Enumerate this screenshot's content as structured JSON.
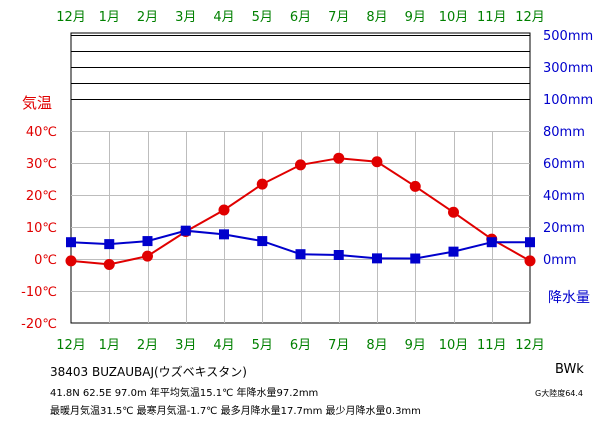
{
  "chart_data": {
    "type": "line",
    "months": [
      "12月",
      "1月",
      "2月",
      "3月",
      "4月",
      "5月",
      "6月",
      "7月",
      "8月",
      "9月",
      "10月",
      "11月",
      "12月"
    ],
    "series": [
      {
        "values": [
          -0.6,
          -1.7,
          0.9,
          8.6,
          15.3,
          23.4,
          29.4,
          31.5,
          30.4,
          22.7,
          14.6,
          6.2,
          -0.6
        ],
        "color": "#e00000",
        "axis": "left",
        "marker": "circle"
      },
      {
        "values": [
          10.5,
          9.3,
          11.2,
          17.7,
          15.4,
          11.2,
          3.0,
          2.5,
          0.4,
          0.3,
          4.6,
          10.5,
          10.5
        ],
        "color": "#0000cc",
        "axis": "right",
        "marker": "square"
      }
    ],
    "left_axis": {
      "label": "気温",
      "ticks": [
        40,
        30,
        20,
        10,
        0,
        -10,
        -20
      ],
      "tick_labels": [
        "40℃",
        "30℃",
        "20℃",
        "10℃",
        "0℃",
        "-10℃",
        "-20℃"
      ],
      "range": [
        -20,
        40
      ],
      "color": "#e00000"
    },
    "right_axis": {
      "label": "降水量",
      "ticks": [
        500,
        300,
        100,
        80,
        60,
        40,
        20,
        0
      ],
      "tick_labels": [
        "500mm",
        "300mm",
        "100mm",
        "80mm",
        "60mm",
        "40mm",
        "20mm",
        "0mm"
      ],
      "linear_range": [
        0,
        100
      ],
      "color": "#0000cc"
    },
    "month_label_color": "#008000",
    "grid": true
  },
  "info": {
    "station": "38403  BUZAUBAJ(ウズベキスタン)",
    "stats1": "41.8N  62.5E  97.0m  年平均気温15.1℃  年降水量97.2mm",
    "stats2": "最暖月気温31.5℃  最寒月気温-1.7℃  最多月降水量17.7mm  最少月降水量0.3mm",
    "climate_code": "BWk",
    "continentality": "G大陸度64.4"
  }
}
